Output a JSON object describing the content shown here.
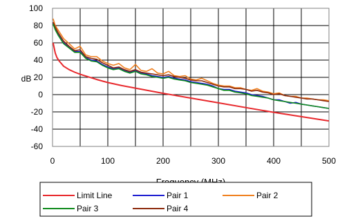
{
  "chart_data": {
    "type": "line",
    "xlabel": "Frequency (MHz)",
    "ylabel": "dB",
    "xlim": [
      0,
      500
    ],
    "ylim": [
      -60,
      100
    ],
    "x_ticks": [
      0,
      100,
      200,
      300,
      400,
      500
    ],
    "y_ticks": [
      100,
      80,
      60,
      40,
      20,
      0,
      -20,
      -40,
      -60
    ],
    "x_gridlines": [
      50,
      100,
      150,
      200,
      250,
      300,
      350,
      400,
      450
    ],
    "y_gridlines": [
      80,
      60,
      40,
      20,
      0,
      -20,
      -40
    ],
    "grid": true,
    "legend_position": "bottom",
    "series": [
      {
        "name": "Limit Line",
        "color": "#e8282c",
        "x": [
          1,
          3,
          5,
          8,
          12,
          16,
          20,
          25,
          30,
          40,
          50,
          60,
          70,
          80,
          100,
          125,
          150,
          175,
          200,
          250,
          300,
          350,
          400,
          450,
          500
        ],
        "y": [
          60,
          54,
          48,
          43,
          39,
          36,
          33,
          31,
          29,
          26,
          23.5,
          21.5,
          19.5,
          17.5,
          14,
          10.5,
          7.5,
          4.5,
          1.5,
          -4,
          -9.5,
          -15,
          -20.5,
          -25.5,
          -30.5
        ]
      },
      {
        "name": "Pair 1",
        "color": "#1c1cd0",
        "x": [
          1,
          5,
          10,
          20,
          30,
          40,
          50,
          60,
          70,
          80,
          90,
          100,
          110,
          120,
          130,
          140,
          150,
          160,
          170,
          180,
          190,
          200,
          210,
          220,
          230,
          240,
          250,
          260,
          270,
          280,
          290,
          300,
          310,
          320,
          330,
          340,
          350,
          360,
          370,
          380,
          390,
          400,
          410,
          420,
          430,
          440,
          450,
          460,
          470,
          480,
          490,
          500
        ],
        "y": [
          83,
          76,
          70,
          60,
          55,
          50,
          50,
          43,
          40,
          39,
          35,
          32,
          30,
          31,
          28,
          26,
          28,
          25,
          24,
          22,
          21,
          20,
          21,
          19,
          18,
          17,
          15,
          14,
          13,
          12,
          10,
          7,
          6,
          6,
          4,
          3,
          2,
          0,
          -1,
          -2,
          -4,
          -6,
          -6,
          -8,
          -10,
          -9,
          -11,
          -12,
          -13,
          -14,
          -15,
          -16
        ]
      },
      {
        "name": "Pair 2",
        "color": "#f07f1e",
        "x": [
          1,
          5,
          10,
          20,
          30,
          40,
          50,
          60,
          70,
          80,
          90,
          100,
          110,
          120,
          130,
          140,
          150,
          160,
          170,
          180,
          190,
          200,
          210,
          220,
          230,
          240,
          250,
          260,
          270,
          280,
          290,
          300,
          310,
          320,
          330,
          340,
          350,
          360,
          370,
          380,
          390,
          400,
          410,
          420,
          430,
          440,
          450,
          460,
          470,
          480,
          490,
          500
        ],
        "y": [
          88,
          80,
          75,
          65,
          59,
          53,
          56,
          46,
          44,
          44,
          39,
          36,
          34,
          36,
          31,
          29,
          35,
          28,
          27,
          30,
          25,
          24,
          27,
          22,
          21,
          22,
          18,
          17,
          19,
          16,
          13,
          11,
          10,
          10,
          8,
          8,
          6,
          5,
          7,
          4,
          3,
          1,
          2,
          -1,
          -2,
          -2,
          -4,
          -4,
          -5,
          -6,
          -6,
          -7
        ]
      },
      {
        "name": "Pair 3",
        "color": "#0f8a1c",
        "x": [
          1,
          5,
          10,
          20,
          30,
          40,
          50,
          60,
          70,
          80,
          90,
          100,
          110,
          120,
          130,
          140,
          150,
          160,
          170,
          180,
          190,
          200,
          210,
          220,
          230,
          240,
          250,
          260,
          270,
          280,
          290,
          300,
          310,
          320,
          330,
          340,
          350,
          360,
          370,
          380,
          390,
          400,
          410,
          420,
          430,
          440,
          450,
          460,
          470,
          480,
          490,
          500
        ],
        "y": [
          82,
          75,
          69,
          59,
          54,
          49,
          49,
          42,
          39,
          38,
          34,
          31,
          29,
          30,
          27,
          25,
          27,
          24,
          23,
          21,
          20,
          19,
          20,
          18,
          17,
          16,
          14,
          13,
          12,
          11,
          9,
          7,
          5,
          5,
          3,
          2,
          1,
          -1,
          -2,
          -3,
          -4,
          -6,
          -7,
          -8,
          -9,
          -10,
          -11,
          -12,
          -13,
          -14,
          -15,
          -16
        ]
      },
      {
        "name": "Pair 4",
        "color": "#8c2a0c",
        "x": [
          1,
          5,
          10,
          20,
          30,
          40,
          50,
          60,
          70,
          80,
          90,
          100,
          110,
          120,
          130,
          140,
          150,
          160,
          170,
          180,
          190,
          200,
          210,
          220,
          230,
          240,
          250,
          260,
          270,
          280,
          290,
          300,
          310,
          320,
          330,
          340,
          350,
          360,
          370,
          380,
          390,
          400,
          410,
          420,
          430,
          440,
          450,
          460,
          470,
          480,
          490,
          500
        ],
        "y": [
          84,
          78,
          72,
          62,
          56,
          51,
          52,
          44,
          42,
          41,
          37,
          34,
          31,
          32,
          29,
          27,
          29,
          26,
          25,
          24,
          23,
          22,
          23,
          21,
          20,
          19,
          17,
          16,
          16,
          14,
          12,
          10,
          9,
          9,
          7,
          7,
          6,
          4,
          5,
          3,
          2,
          0,
          1,
          -1,
          -2,
          -3,
          -4,
          -5,
          -5,
          -6,
          -7,
          -8
        ]
      }
    ],
    "legend_rows": [
      [
        "Limit Line",
        "Pair 1",
        "Pair 2"
      ],
      [
        "Pair 3",
        "Pair 4"
      ]
    ]
  }
}
